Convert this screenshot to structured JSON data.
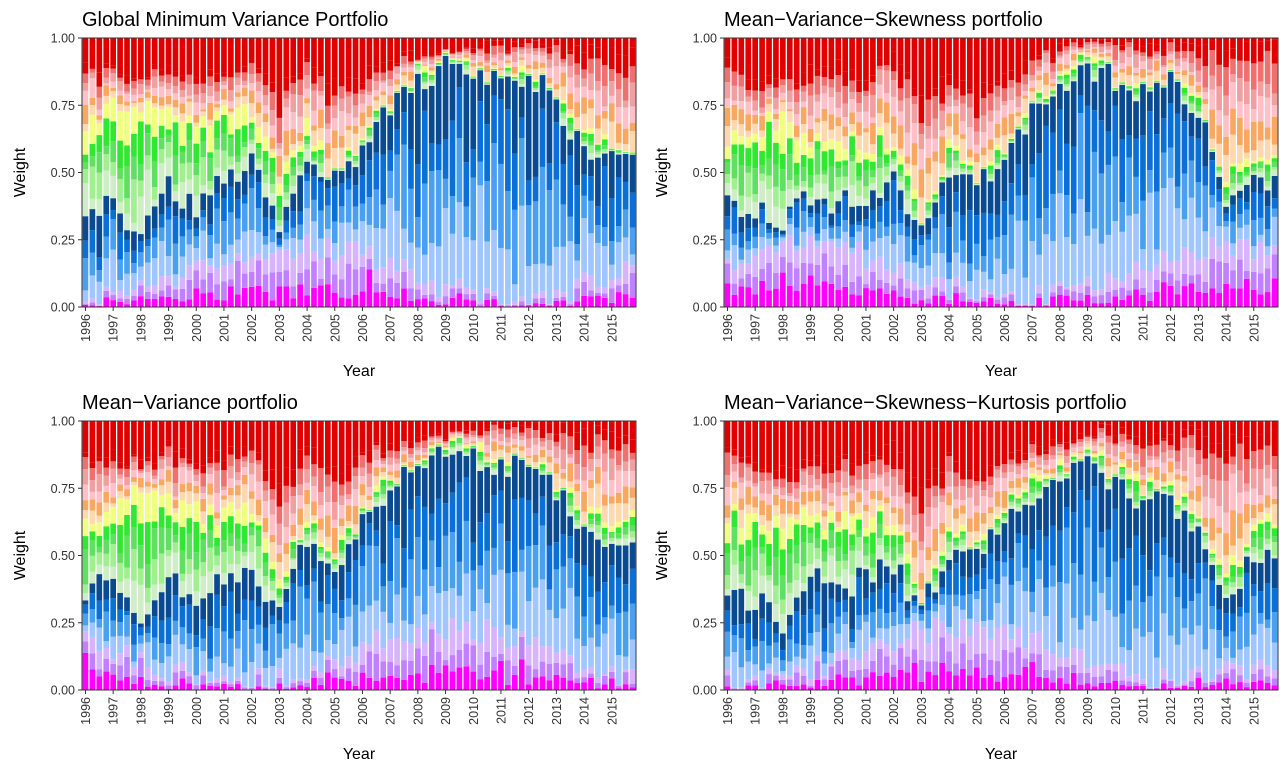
{
  "figure": {
    "xlabel": "Year",
    "ylabel": "Weight",
    "years": [
      "1996",
      "1997",
      "1998",
      "1999",
      "2000",
      "2001",
      "2002",
      "2003",
      "2004",
      "2005",
      "2006",
      "2007",
      "2008",
      "2009",
      "2010",
      "2011",
      "2012",
      "2013",
      "2014",
      "2015"
    ],
    "yticks": [
      "0.00",
      "0.25",
      "0.50",
      "0.75",
      "1.00"
    ],
    "palette": [
      "#f0f",
      "#c080ff",
      "#d8b4ff",
      "#9fc6ff",
      "#4aa0f0",
      "#0a70d8",
      "#0a4a90",
      "#cfeec8",
      "#a0f090",
      "#60e060",
      "#30e830",
      "#f0ff80",
      "#ffd8b0",
      "#f8a860",
      "#ffc0c8",
      "#f0a0a0",
      "#f07070",
      "#e00000"
    ]
  },
  "chart_data": [
    {
      "type": "bar",
      "stacked": true,
      "title": "Global Minimum Variance Portfolio",
      "xlabel": "Year",
      "ylabel": "Weight",
      "ylim": [
        0,
        1
      ],
      "x_ticks": [
        "1996",
        "1997",
        "1998",
        "1999",
        "2000",
        "2001",
        "2002",
        "2003",
        "2004",
        "2005",
        "2006",
        "2007",
        "2008",
        "2009",
        "2010",
        "2011",
        "2012",
        "2013",
        "2014",
        "2015"
      ],
      "y_ticks": [
        "0.00",
        "0.25",
        "0.50",
        "0.75",
        "1.00"
      ],
      "grid": false,
      "bar_count": 80,
      "series_count": 18,
      "top_of_blue_group_by_year": [
        0.36,
        0.38,
        0.27,
        0.45,
        0.38,
        0.46,
        0.55,
        0.32,
        0.55,
        0.46,
        0.6,
        0.74,
        0.84,
        0.89,
        0.86,
        0.83,
        0.86,
        0.77,
        0.56,
        0.54
      ],
      "top_of_green_yellow_group_by_year": [
        0.66,
        0.73,
        0.74,
        0.73,
        0.72,
        0.72,
        0.75,
        0.46,
        0.68,
        0.48,
        0.62,
        0.78,
        0.86,
        0.9,
        0.89,
        0.84,
        0.87,
        0.78,
        0.62,
        0.6
      ],
      "top_of_orange_pink_group_by_year": [
        0.88,
        0.88,
        0.86,
        0.88,
        0.86,
        0.88,
        0.92,
        0.8,
        0.9,
        0.82,
        0.86,
        0.92,
        0.94,
        0.95,
        0.97,
        0.97,
        0.98,
        0.98,
        0.97,
        0.96
      ]
    },
    {
      "type": "bar",
      "stacked": true,
      "title": "Mean−Variance−Skewness portfolio",
      "xlabel": "Year",
      "ylabel": "Weight",
      "ylim": [
        0,
        1
      ],
      "x_ticks": [
        "1996",
        "1997",
        "1998",
        "1999",
        "2000",
        "2001",
        "2002",
        "2003",
        "2004",
        "2005",
        "2006",
        "2007",
        "2008",
        "2009",
        "2010",
        "2011",
        "2012",
        "2013",
        "2014",
        "2015"
      ],
      "y_ticks": [
        "0.00",
        "0.25",
        "0.50",
        "0.75",
        "1.00"
      ],
      "grid": false,
      "bar_count": 80,
      "series_count": 18,
      "top_of_blue_group_by_year": [
        0.4,
        0.36,
        0.3,
        0.42,
        0.38,
        0.4,
        0.5,
        0.26,
        0.5,
        0.44,
        0.58,
        0.72,
        0.82,
        0.9,
        0.84,
        0.8,
        0.84,
        0.72,
        0.4,
        0.48
      ],
      "top_of_green_yellow_group_by_year": [
        0.64,
        0.68,
        0.68,
        0.62,
        0.62,
        0.6,
        0.64,
        0.34,
        0.58,
        0.5,
        0.6,
        0.76,
        0.86,
        0.92,
        0.86,
        0.84,
        0.86,
        0.76,
        0.46,
        0.56
      ],
      "top_of_orange_pink_group_by_year": [
        0.9,
        0.86,
        0.84,
        0.88,
        0.9,
        0.86,
        0.94,
        0.76,
        0.88,
        0.8,
        0.84,
        0.92,
        0.96,
        0.98,
        0.98,
        0.98,
        0.99,
        0.98,
        0.96,
        0.98
      ]
    },
    {
      "type": "bar",
      "stacked": true,
      "title": "Mean−Variance portfolio",
      "xlabel": "Year",
      "ylabel": "Weight",
      "ylim": [
        0,
        1
      ],
      "x_ticks": [
        "1996",
        "1997",
        "1998",
        "1999",
        "2000",
        "2001",
        "2002",
        "2003",
        "2004",
        "2005",
        "2006",
        "2007",
        "2008",
        "2009",
        "2010",
        "2011",
        "2012",
        "2013",
        "2014",
        "2015"
      ],
      "y_ticks": [
        "0.00",
        "0.25",
        "0.50",
        "0.75",
        "1.00"
      ],
      "grid": false,
      "bar_count": 80,
      "series_count": 18,
      "top_of_blue_group_by_year": [
        0.38,
        0.4,
        0.28,
        0.44,
        0.34,
        0.44,
        0.46,
        0.28,
        0.56,
        0.46,
        0.62,
        0.74,
        0.84,
        0.9,
        0.86,
        0.82,
        0.86,
        0.74,
        0.6,
        0.56
      ],
      "top_of_green_yellow_group_by_year": [
        0.62,
        0.7,
        0.72,
        0.7,
        0.66,
        0.66,
        0.7,
        0.4,
        0.66,
        0.5,
        0.64,
        0.78,
        0.86,
        0.92,
        0.88,
        0.84,
        0.86,
        0.78,
        0.64,
        0.62
      ],
      "top_of_orange_pink_group_by_year": [
        0.86,
        0.88,
        0.84,
        0.9,
        0.86,
        0.88,
        0.9,
        0.78,
        0.9,
        0.82,
        0.86,
        0.92,
        0.94,
        0.96,
        0.97,
        0.97,
        0.98,
        0.98,
        0.96,
        0.96
      ]
    },
    {
      "type": "bar",
      "stacked": true,
      "title": "Mean−Variance−Skewness−Kurtosis portfolio",
      "xlabel": "Year",
      "ylabel": "Weight",
      "ylim": [
        0,
        1
      ],
      "x_ticks": [
        "1996",
        "1997",
        "1998",
        "1999",
        "2000",
        "2001",
        "2002",
        "2003",
        "2004",
        "2005",
        "2006",
        "2007",
        "2008",
        "2009",
        "2010",
        "2011",
        "2012",
        "2013",
        "2014",
        "2015"
      ],
      "y_ticks": [
        "0.00",
        "0.25",
        "0.50",
        "0.75",
        "1.00"
      ],
      "grid": false,
      "bar_count": 80,
      "series_count": 18,
      "top_of_blue_group_by_year": [
        0.36,
        0.34,
        0.26,
        0.42,
        0.36,
        0.42,
        0.46,
        0.3,
        0.52,
        0.48,
        0.62,
        0.72,
        0.8,
        0.84,
        0.78,
        0.66,
        0.72,
        0.56,
        0.3,
        0.52
      ],
      "top_of_green_yellow_group_by_year": [
        0.64,
        0.66,
        0.62,
        0.66,
        0.62,
        0.64,
        0.66,
        0.34,
        0.62,
        0.54,
        0.66,
        0.78,
        0.84,
        0.86,
        0.82,
        0.76,
        0.76,
        0.64,
        0.4,
        0.62
      ],
      "top_of_orange_pink_group_by_year": [
        0.88,
        0.86,
        0.82,
        0.88,
        0.86,
        0.86,
        0.9,
        0.74,
        0.86,
        0.82,
        0.86,
        0.9,
        0.94,
        0.96,
        0.96,
        0.94,
        0.96,
        0.96,
        0.92,
        0.94
      ]
    }
  ]
}
